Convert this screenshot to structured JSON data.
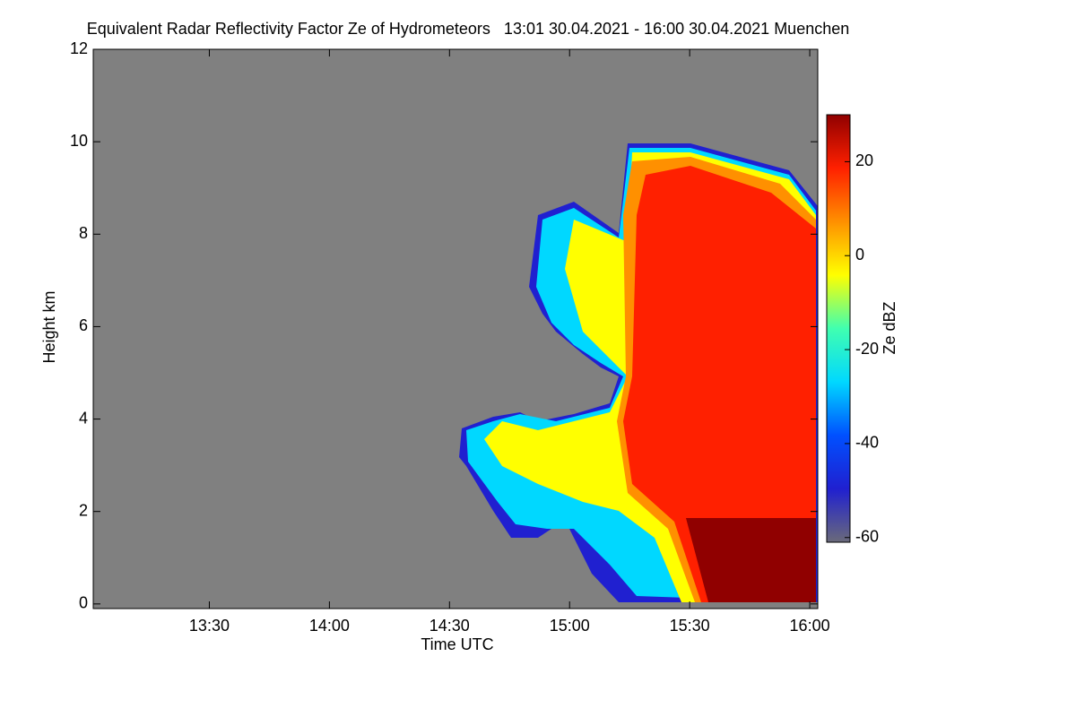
{
  "chart_data": {
    "type": "heatmap",
    "title": "Equivalent Radar Reflectivity Factor Ze of Hydrometeors   13:01 30.04.2021 - 16:00 30.04.2021 Muenchen",
    "xlabel": "Time UTC",
    "ylabel": "Height km",
    "xlim": [
      "13:01",
      "16:02"
    ],
    "xticks": [
      "13:30",
      "14:00",
      "14:30",
      "15:00",
      "15:30",
      "16:00"
    ],
    "ylim": [
      -0.1,
      12
    ],
    "yticks": [
      0,
      2,
      4,
      6,
      8,
      10,
      12
    ],
    "background": "#808080",
    "colorbar": {
      "label": "Ze dBZ",
      "clim": [
        -61,
        30
      ],
      "ticks": [
        -60,
        -40,
        -20,
        0,
        20
      ],
      "colormap": [
        "#6a6a7a",
        "#2020d0",
        "#0050ff",
        "#00d8ff",
        "#40ffb0",
        "#ffff00",
        "#ff9000",
        "#ff2000",
        "#900000"
      ]
    }
  }
}
